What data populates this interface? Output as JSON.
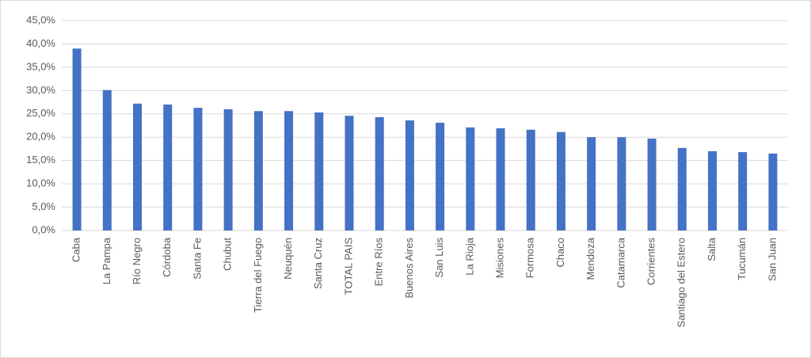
{
  "chart_data": {
    "type": "bar",
    "categories": [
      "Caba",
      "La Pampa",
      "Río Negro",
      "Córdoba",
      "Santa Fe",
      "Chubut",
      "Tierra del Fuego",
      "Neuquén",
      "Santa Cruz",
      "TOTAL PAIS",
      "Entre Ríos",
      "Buenos Aires",
      "San Luis",
      "La Rioja",
      "Misiones",
      "Formosa",
      "Chaco",
      "Mendoza",
      "Catamarca",
      "Corrientes",
      "Santiago del Estero",
      "Salta",
      "Tucumán",
      "San Juan"
    ],
    "values": [
      39.0,
      30.1,
      27.2,
      27.0,
      26.3,
      26.0,
      25.6,
      25.6,
      25.3,
      24.6,
      24.3,
      23.6,
      23.1,
      22.1,
      21.9,
      21.6,
      21.1,
      20.0,
      20.0,
      19.7,
      17.7,
      17.0,
      16.8,
      16.5
    ],
    "color": "#4472c4",
    "ylim": [
      0,
      45
    ],
    "yticks": [
      {
        "value": 0,
        "label": "0,0%"
      },
      {
        "value": 5,
        "label": "5,0%"
      },
      {
        "value": 10,
        "label": "10,0%"
      },
      {
        "value": 15,
        "label": "15,0%"
      },
      {
        "value": 20,
        "label": "20,0%"
      },
      {
        "value": 25,
        "label": "25,0%"
      },
      {
        "value": 30,
        "label": "30,0%"
      },
      {
        "value": 35,
        "label": "35,0%"
      },
      {
        "value": 40,
        "label": "40,0%"
      },
      {
        "value": 45,
        "label": "45,0%"
      }
    ],
    "grid": true
  }
}
